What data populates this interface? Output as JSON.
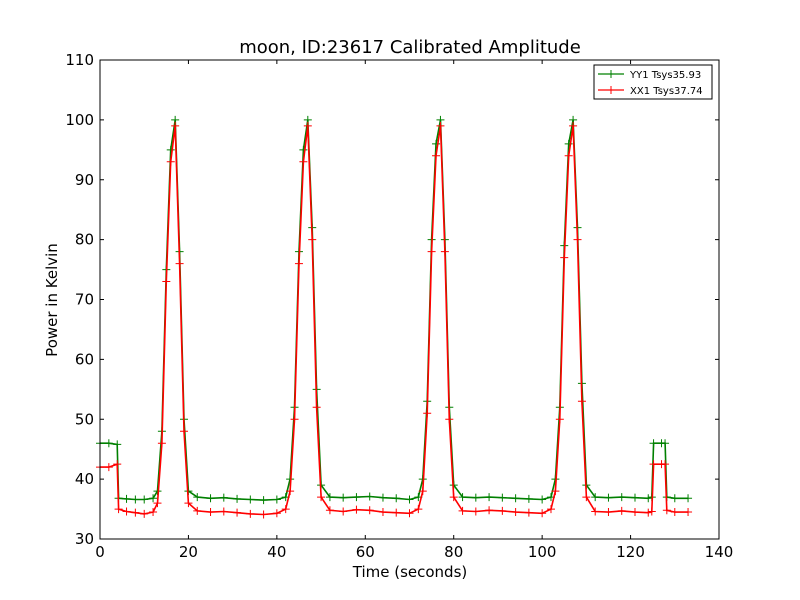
{
  "chart_data": {
    "type": "line",
    "title": "moon, ID:23617 Calibrated Amplitude",
    "xlabel": "Time (seconds)",
    "ylabel": "Power in Kelvin",
    "xlim": [
      0,
      140
    ],
    "ylim": [
      30,
      110
    ],
    "xticks": [
      0,
      20,
      40,
      60,
      80,
      100,
      120,
      140
    ],
    "yticks": [
      30,
      40,
      50,
      60,
      70,
      80,
      90,
      100,
      110
    ],
    "grid": false,
    "legend_position": "top-right",
    "marker": "plus",
    "x": [
      0,
      2,
      3.9,
      4.2,
      6,
      8,
      10,
      12,
      13,
      14,
      15,
      16,
      17,
      18,
      19,
      20,
      22,
      25,
      28,
      31,
      34,
      37,
      40,
      42,
      43,
      44,
      45,
      46,
      47,
      48,
      49,
      50,
      52,
      55,
      58,
      61,
      64,
      67,
      70,
      72,
      73,
      74,
      75,
      76,
      77,
      78,
      79,
      80,
      82,
      85,
      88,
      91,
      94,
      97,
      100,
      102,
      103,
      104,
      105,
      106,
      107,
      108,
      109,
      110,
      112,
      115,
      118,
      121,
      124,
      124.8,
      125.2,
      127,
      127.8,
      128.2,
      130,
      133
    ],
    "series": [
      {
        "name": "YY1 Tsys35.93",
        "color": "#008000",
        "values": [
          46,
          46,
          45.8,
          36.8,
          36.7,
          36.6,
          36.6,
          36.8,
          38,
          48,
          75,
          95,
          100,
          78,
          50,
          38,
          37,
          36.8,
          36.9,
          36.7,
          36.6,
          36.5,
          36.6,
          37,
          40,
          52,
          78,
          95,
          100,
          82,
          55,
          39,
          37,
          36.9,
          37,
          37.1,
          36.9,
          36.8,
          36.6,
          37,
          40,
          53,
          80,
          96,
          100,
          80,
          52,
          39,
          37,
          36.9,
          37,
          36.9,
          36.8,
          36.7,
          36.6,
          37,
          40,
          52,
          79,
          96,
          100,
          82,
          56,
          39,
          37,
          36.9,
          37,
          36.9,
          36.8,
          37,
          46,
          46,
          46,
          37,
          36.8,
          36.8
        ]
      },
      {
        "name": "XX1 Tsys37.74",
        "color": "#ff0000",
        "values": [
          42,
          42,
          42.5,
          35,
          34.6,
          34.4,
          34.2,
          34.5,
          36,
          46,
          73,
          93,
          99,
          76,
          48,
          36,
          34.7,
          34.5,
          34.6,
          34.4,
          34.2,
          34.1,
          34.3,
          35,
          38,
          50,
          76,
          93,
          99,
          80,
          52,
          37,
          34.8,
          34.6,
          34.9,
          34.8,
          34.5,
          34.4,
          34.3,
          35,
          38,
          51,
          78,
          94,
          99,
          78,
          50,
          37,
          34.7,
          34.6,
          34.8,
          34.7,
          34.5,
          34.4,
          34.3,
          35,
          38,
          50,
          77,
          94,
          99,
          80,
          53,
          37,
          34.6,
          34.5,
          34.7,
          34.5,
          34.4,
          34.6,
          42.5,
          42.5,
          42.5,
          34.8,
          34.5,
          34.5
        ]
      }
    ]
  }
}
